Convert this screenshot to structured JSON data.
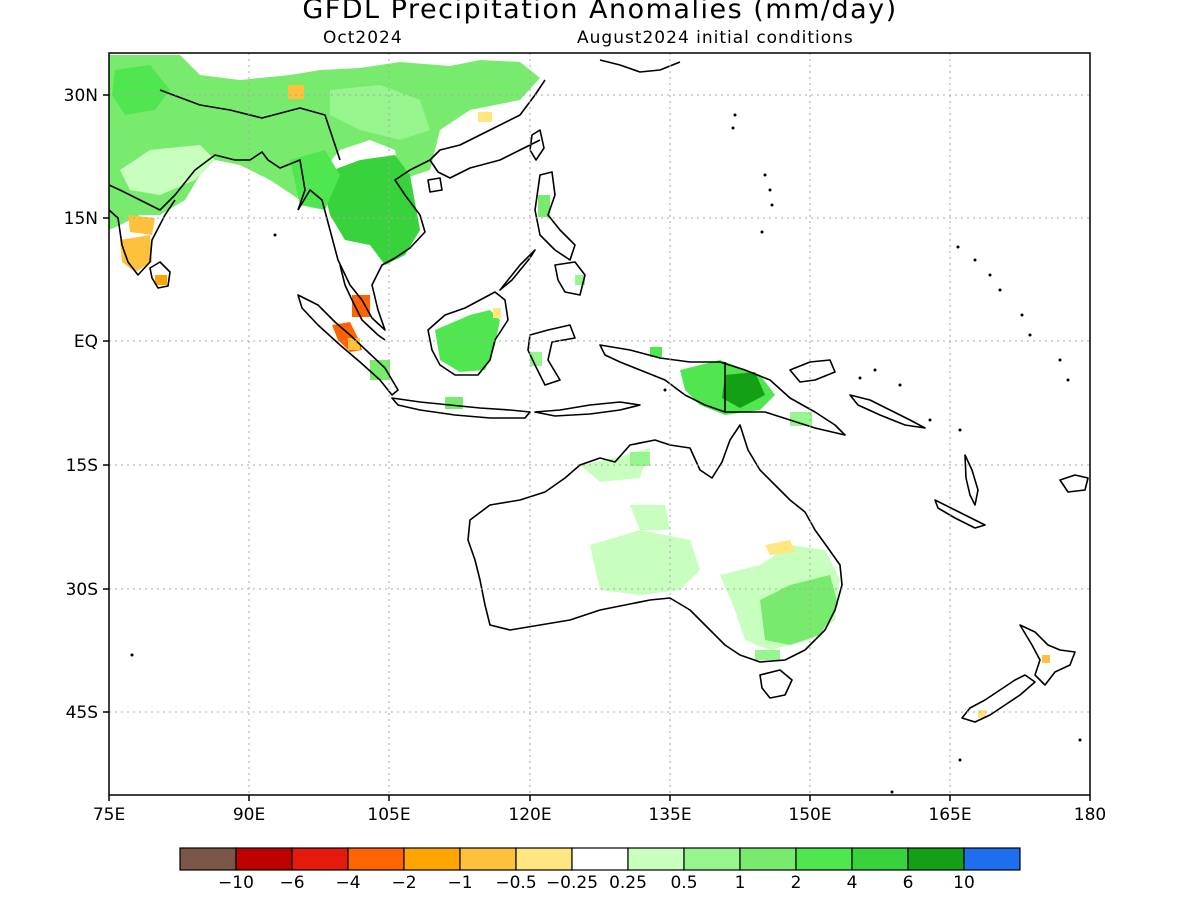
{
  "title": "GFDL Precipitation Anomalies (mm/day)",
  "subtitle_left": "Oct2024",
  "subtitle_right": "August2024 initial conditions",
  "lon_ticks": [
    "75E",
    "90E",
    "105E",
    "120E",
    "135E",
    "150E",
    "165E",
    "180"
  ],
  "lat_ticks": [
    "30N",
    "15N",
    "EQ",
    "15S",
    "30S",
    "45S"
  ],
  "colorbar": {
    "colors": [
      "#7a5548",
      "#bf0000",
      "#e31a0c",
      "#ff6400",
      "#ffa500",
      "#ffc13c",
      "#ffe680",
      "#ffffff",
      "#c8ffbe",
      "#96f58c",
      "#78eb6e",
      "#50e650",
      "#37d23c",
      "#14a014",
      "#1e6ef0"
    ],
    "labels": [
      "−10",
      "−6",
      "−4",
      "−2",
      "−1",
      "−0.5",
      "−0.25",
      "0.25",
      "0.5",
      "1",
      "2",
      "4",
      "6",
      "10"
    ]
  }
}
